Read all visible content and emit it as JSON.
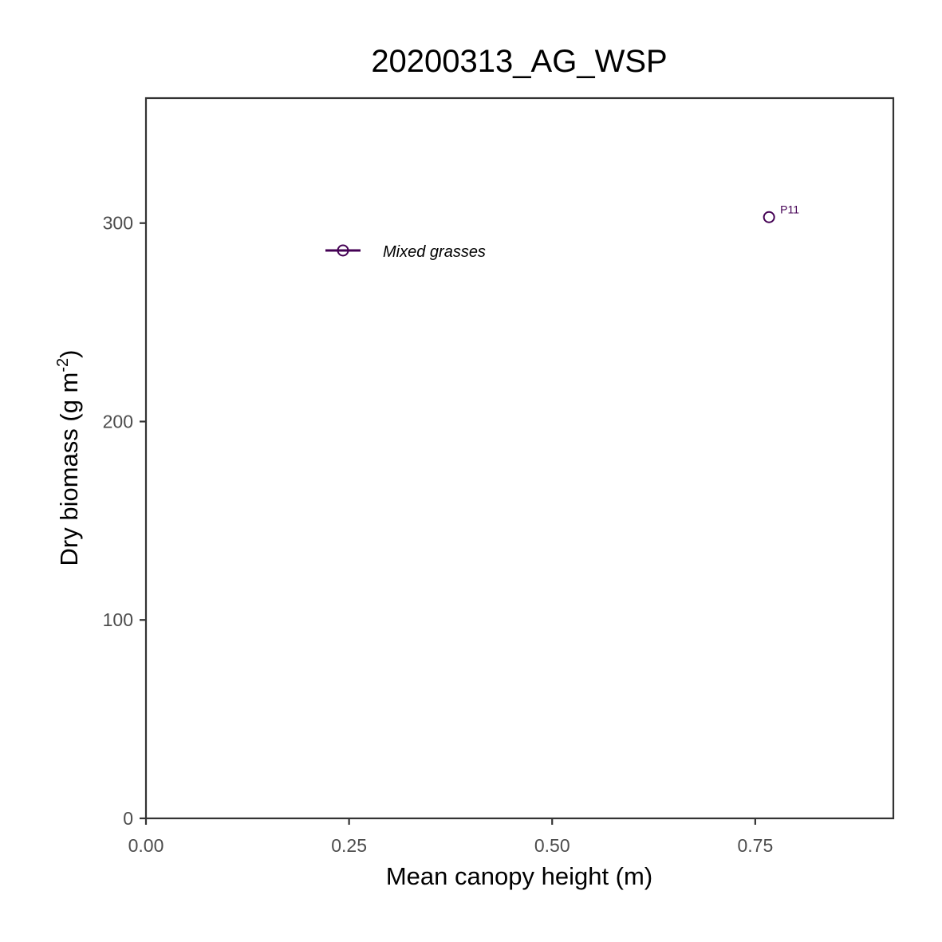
{
  "chart_data": {
    "type": "scatter",
    "title": "20200313_AG_WSP",
    "xlabel": "Mean canopy height (m)",
    "ylabel_main": "Dry biomass (g m",
    "ylabel_sup": "-2",
    "ylabel_close": ")",
    "xlim": [
      0,
      0.92
    ],
    "ylim": [
      0,
      363
    ],
    "x_ticks": [
      0,
      0.25,
      0.5,
      0.75
    ],
    "x_tick_labels": [
      "0.00",
      "0.25",
      "0.50",
      "0.75"
    ],
    "y_ticks": [
      0,
      100,
      200,
      300
    ],
    "y_tick_labels": [
      "0",
      "100",
      "200",
      "300"
    ],
    "grid": false,
    "series": [
      {
        "name": "Mixed grasses",
        "color": "#440154",
        "marker": "open-circle",
        "points": [
          {
            "x": 0.767,
            "y": 303,
            "label": "P11"
          }
        ]
      }
    ],
    "legend": {
      "placement": "top-left",
      "entries": [
        "Mixed grasses"
      ]
    }
  }
}
